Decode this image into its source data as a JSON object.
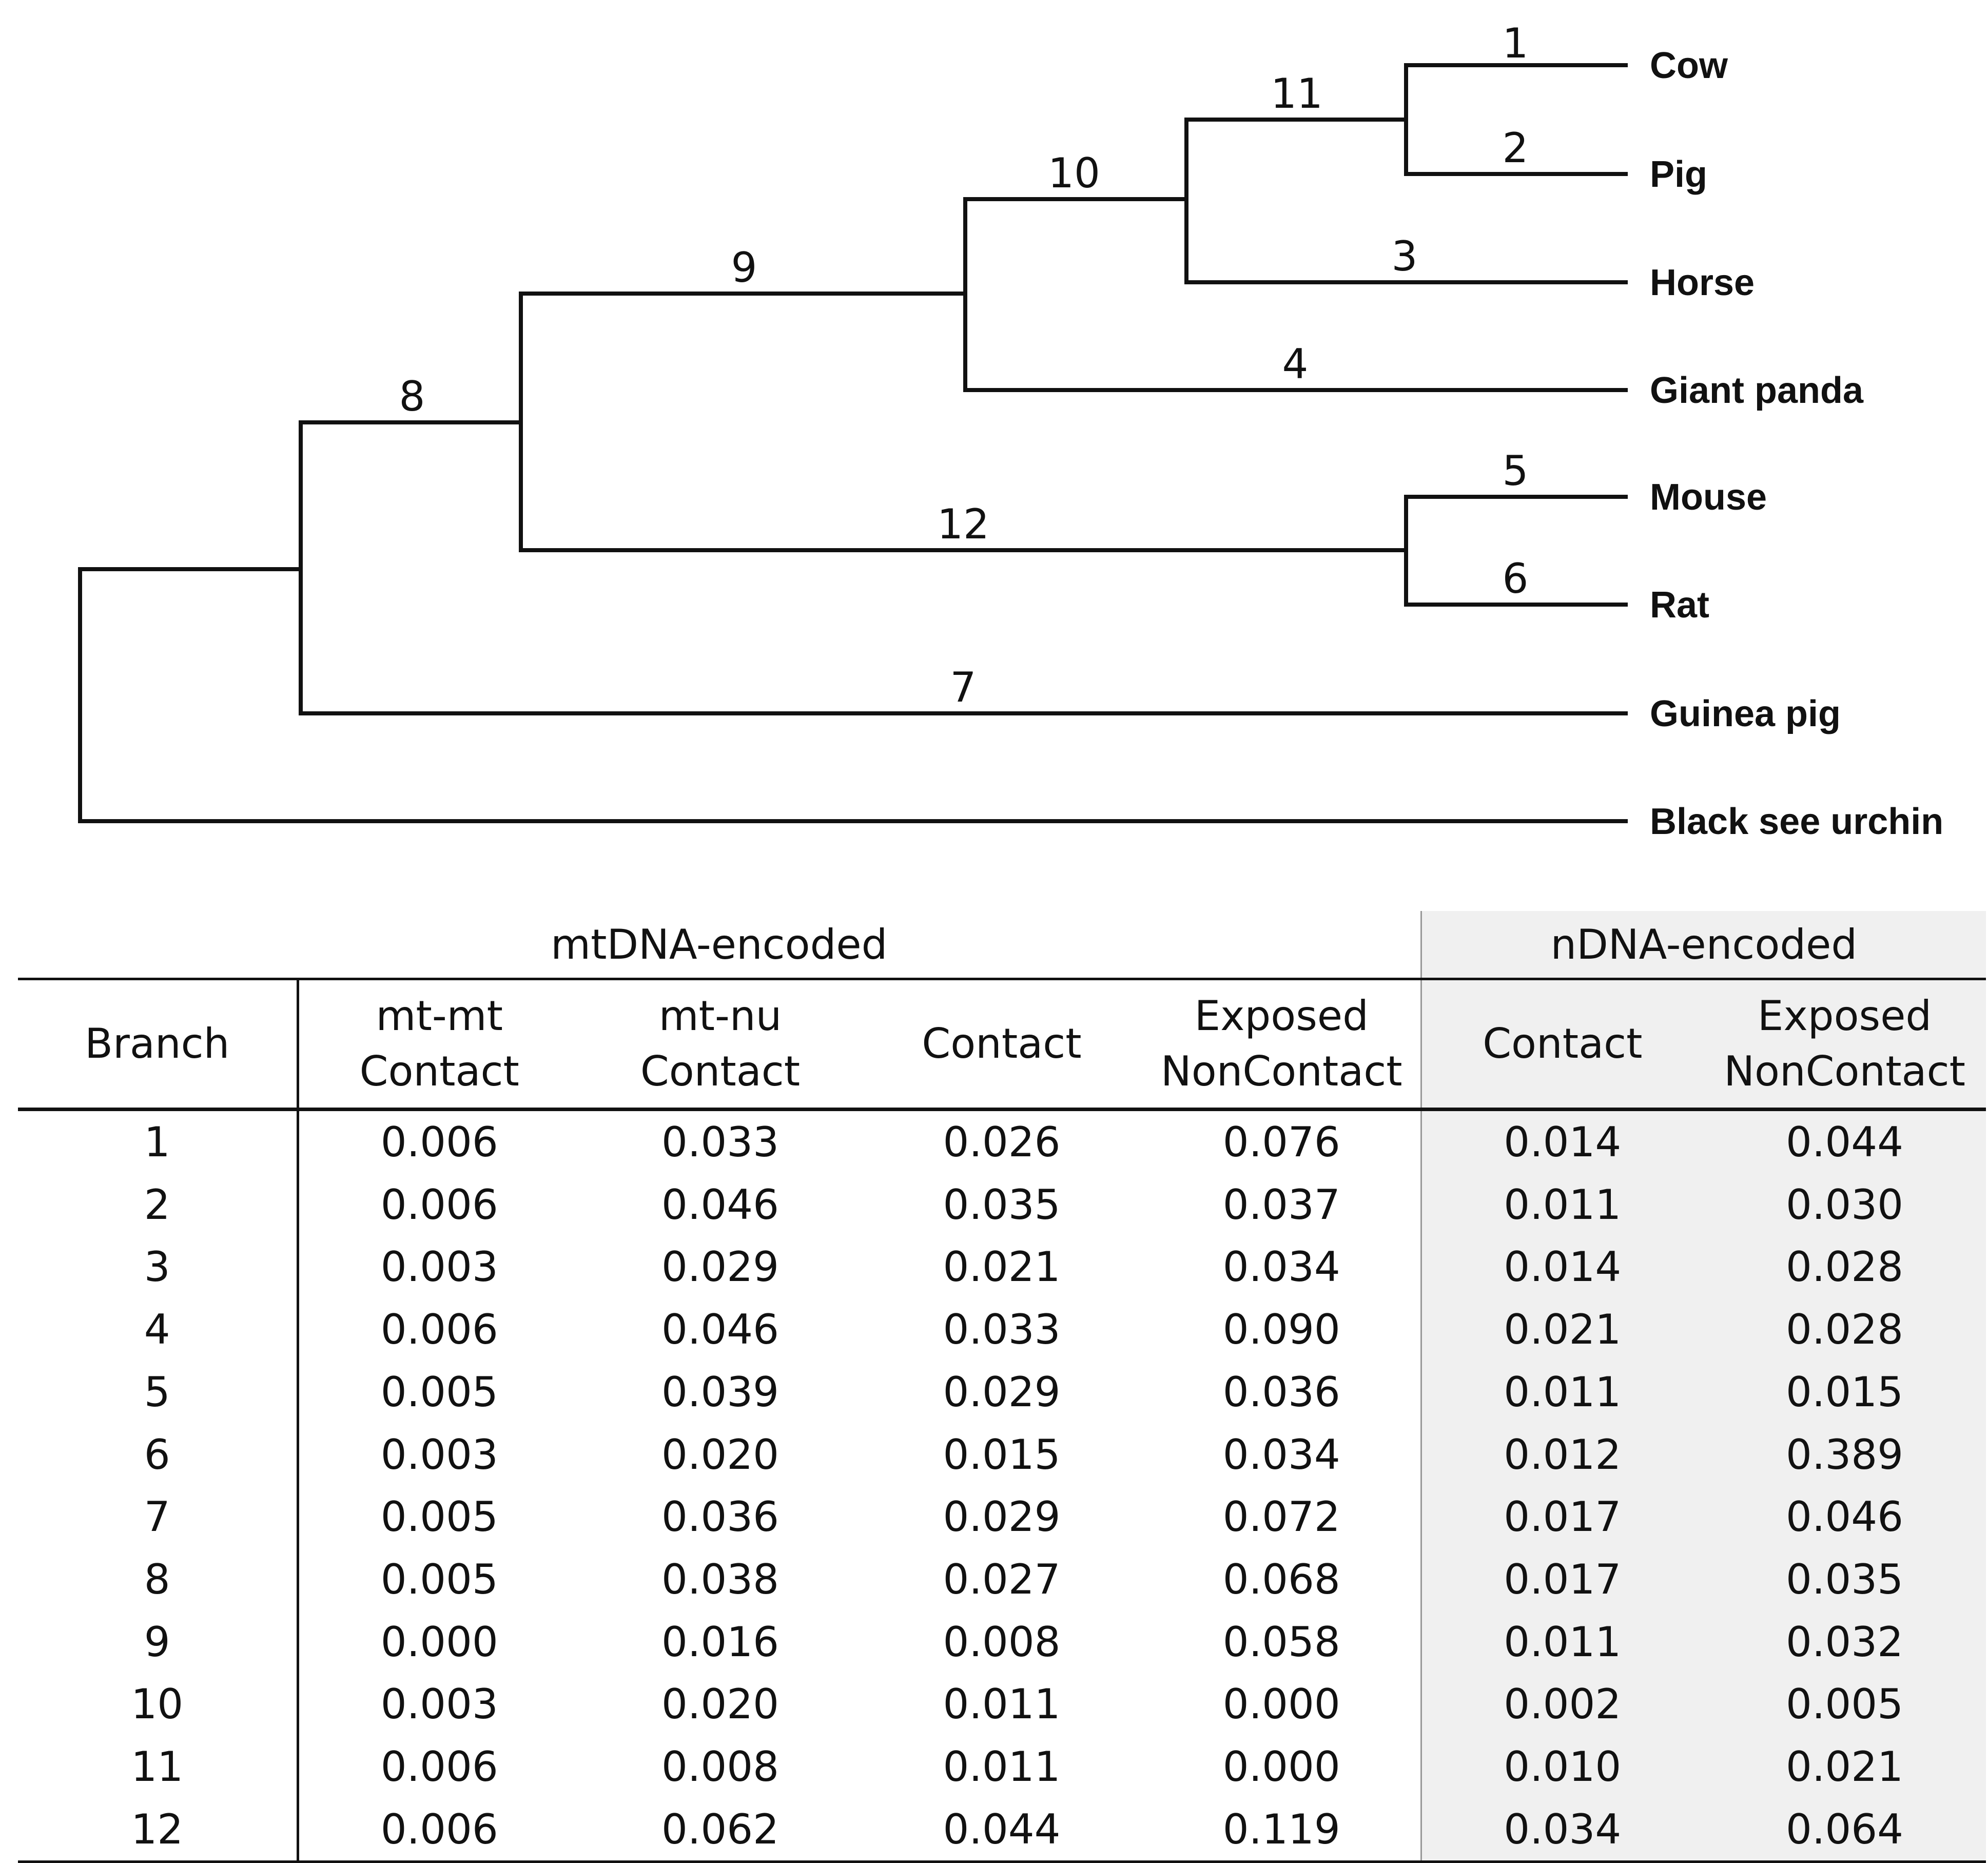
{
  "tree": {
    "taxa": [
      "Cow",
      "Pig",
      "Horse",
      "Giant panda",
      "Mouse",
      "Rat",
      "Guinea pig",
      "Black see urchin"
    ],
    "branch_labels": [
      "1",
      "2",
      "3",
      "4",
      "5",
      "6",
      "7",
      "8",
      "9",
      "10",
      "11",
      "12"
    ]
  },
  "table": {
    "group_headers": {
      "mtdna": "mtDNA-encoded",
      "ndna": "nDNA-encoded"
    },
    "columns": [
      [
        "Branch"
      ],
      [
        "mt-mt",
        "Contact"
      ],
      [
        "mt-nu",
        "Contact"
      ],
      [
        "Contact"
      ],
      [
        "Exposed",
        "NonContact"
      ],
      [
        "Contact"
      ],
      [
        "Exposed",
        "NonContact"
      ]
    ],
    "rows": [
      [
        "1",
        "0.006",
        "0.033",
        "0.026",
        "0.076",
        "0.014",
        "0.044"
      ],
      [
        "2",
        "0.006",
        "0.046",
        "0.035",
        "0.037",
        "0.011",
        "0.030"
      ],
      [
        "3",
        "0.003",
        "0.029",
        "0.021",
        "0.034",
        "0.014",
        "0.028"
      ],
      [
        "4",
        "0.006",
        "0.046",
        "0.033",
        "0.090",
        "0.021",
        "0.028"
      ],
      [
        "5",
        "0.005",
        "0.039",
        "0.029",
        "0.036",
        "0.011",
        "0.015"
      ],
      [
        "6",
        "0.003",
        "0.020",
        "0.015",
        "0.034",
        "0.012",
        "0.389"
      ],
      [
        "7",
        "0.005",
        "0.036",
        "0.029",
        "0.072",
        "0.017",
        "0.046"
      ],
      [
        "8",
        "0.005",
        "0.038",
        "0.027",
        "0.068",
        "0.017",
        "0.035"
      ],
      [
        "9",
        "0.000",
        "0.016",
        "0.008",
        "0.058",
        "0.011",
        "0.032"
      ],
      [
        "10",
        "0.003",
        "0.020",
        "0.011",
        "0.000",
        "0.002",
        "0.005"
      ],
      [
        "11",
        "0.006",
        "0.008",
        "0.011",
        "0.000",
        "0.010",
        "0.021"
      ],
      [
        "12",
        "0.006",
        "0.062",
        "0.044",
        "0.119",
        "0.034",
        "0.064"
      ]
    ]
  }
}
